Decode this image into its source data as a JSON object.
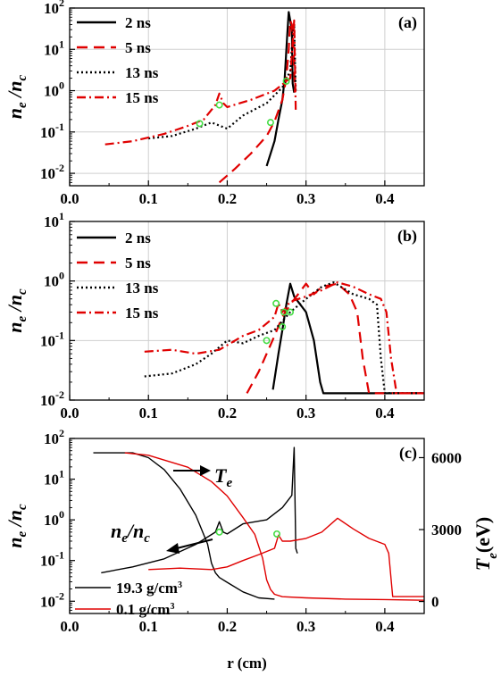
{
  "chart_data": [
    {
      "type": "line",
      "panel_label": "(a)",
      "ylabel": "n_e/n_c",
      "y_scale": "log",
      "xlim": [
        0.0,
        0.45
      ],
      "ylim": [
        0.005,
        100
      ],
      "x_ticks": [
        "0.0",
        "0.1",
        "0.2",
        "0.3",
        "0.4"
      ],
      "y_ticks": [
        0.01,
        0.1,
        1,
        10,
        100
      ],
      "grid": true,
      "legend_position": "top-left",
      "series": [
        {
          "name": "2 ns",
          "color": "#000000",
          "dash": "solid",
          "x": [
            0.25,
            0.26,
            0.265,
            0.27,
            0.273,
            0.276,
            0.278,
            0.28,
            0.282,
            0.283,
            0.285
          ],
          "y": [
            0.015,
            0.06,
            0.2,
            0.6,
            2.0,
            20,
            80,
            50,
            30,
            1.5,
            0.9
          ]
        },
        {
          "name": "5 ns",
          "color": "#e00000",
          "dash": "12,7",
          "x": [
            0.19,
            0.21,
            0.23,
            0.25,
            0.26,
            0.27,
            0.275,
            0.278,
            0.28,
            0.282,
            0.284,
            0.286
          ],
          "y": [
            0.006,
            0.013,
            0.03,
            0.08,
            0.18,
            0.6,
            2.0,
            10,
            50,
            40,
            12,
            0.9
          ]
        },
        {
          "name": "13 ns",
          "color": "#000000",
          "dash": "2,3",
          "x": [
            0.1,
            0.13,
            0.16,
            0.18,
            0.2,
            0.22,
            0.25,
            0.27,
            0.28,
            0.283,
            0.285,
            0.287
          ],
          "y": [
            0.07,
            0.08,
            0.12,
            0.17,
            0.12,
            0.25,
            0.5,
            1.2,
            3,
            20,
            40,
            0.9
          ]
        },
        {
          "name": "15 ns",
          "color": "#e00000",
          "dash": "10,4,2,4",
          "x": [
            0.045,
            0.08,
            0.12,
            0.15,
            0.17,
            0.185,
            0.19,
            0.195,
            0.2,
            0.23,
            0.26,
            0.28,
            0.285,
            0.287
          ],
          "y": [
            0.05,
            0.06,
            0.09,
            0.14,
            0.2,
            0.45,
            0.85,
            0.5,
            0.4,
            0.6,
            1.0,
            2.0,
            50,
            0.3
          ]
        }
      ],
      "markers": {
        "color": "#44dd44",
        "x": [
          0.165,
          0.19,
          0.255,
          0.275
        ],
        "y": [
          0.16,
          0.45,
          0.17,
          1.7
        ]
      }
    },
    {
      "type": "line",
      "panel_label": "(b)",
      "ylabel": "n_e/n_c",
      "y_scale": "log",
      "xlim": [
        0.0,
        0.45
      ],
      "ylim": [
        0.01,
        10
      ],
      "x_ticks": [
        "0.0",
        "0.1",
        "0.2",
        "0.3",
        "0.4"
      ],
      "y_ticks": [
        0.01,
        0.1,
        1,
        10
      ],
      "grid": true,
      "legend_position": "top-left",
      "series": [
        {
          "name": "2 ns",
          "color": "#000000",
          "dash": "solid",
          "x": [
            0.258,
            0.265,
            0.27,
            0.275,
            0.28,
            0.285,
            0.29,
            0.3,
            0.31,
            0.318,
            0.322,
            0.33,
            0.45
          ],
          "y": [
            0.015,
            0.06,
            0.15,
            0.4,
            0.9,
            0.55,
            0.45,
            0.3,
            0.1,
            0.02,
            0.013,
            0.013,
            0.013
          ]
        },
        {
          "name": "5 ns",
          "color": "#e00000",
          "dash": "12,7",
          "x": [
            0.225,
            0.24,
            0.25,
            0.26,
            0.27,
            0.28,
            0.3,
            0.31,
            0.32,
            0.34,
            0.355,
            0.365,
            0.372,
            0.38,
            0.45
          ],
          "y": [
            0.013,
            0.03,
            0.06,
            0.12,
            0.25,
            0.4,
            0.9,
            0.6,
            0.8,
            0.9,
            0.6,
            0.3,
            0.05,
            0.013,
            0.013
          ]
        },
        {
          "name": "13 ns",
          "color": "#000000",
          "dash": "2,3",
          "x": [
            0.095,
            0.13,
            0.16,
            0.18,
            0.2,
            0.22,
            0.24,
            0.26,
            0.28,
            0.3,
            0.32,
            0.335,
            0.36,
            0.38,
            0.39,
            0.395,
            0.4,
            0.45
          ],
          "y": [
            0.025,
            0.028,
            0.04,
            0.06,
            0.1,
            0.09,
            0.12,
            0.15,
            0.3,
            0.5,
            0.8,
            0.95,
            0.6,
            0.5,
            0.4,
            0.05,
            0.013,
            0.013
          ]
        },
        {
          "name": "15 ns",
          "color": "#e00000",
          "dash": "10,4,2,4",
          "x": [
            0.095,
            0.13,
            0.16,
            0.19,
            0.22,
            0.24,
            0.26,
            0.265,
            0.27,
            0.28,
            0.3,
            0.32,
            0.34,
            0.36,
            0.38,
            0.395,
            0.402,
            0.408,
            0.415,
            0.45
          ],
          "y": [
            0.065,
            0.07,
            0.06,
            0.07,
            0.12,
            0.15,
            0.25,
            0.42,
            0.3,
            0.45,
            0.55,
            0.7,
            0.95,
            0.8,
            0.6,
            0.5,
            0.3,
            0.05,
            0.013,
            0.013
          ]
        }
      ],
      "markers": {
        "color": "#44dd44",
        "x": [
          0.25,
          0.262,
          0.27,
          0.272,
          0.28
        ],
        "y": [
          0.1,
          0.42,
          0.17,
          0.3,
          0.3
        ]
      }
    },
    {
      "type": "line",
      "panel_label": "(c)",
      "ylabel": "n_e/n_c",
      "y2label": "T_e(eV)",
      "xlabel": "r (cm)",
      "y_scale": "log",
      "xlim": [
        0.0,
        0.45
      ],
      "ylim": [
        0.005,
        100
      ],
      "y2lim": [
        -500,
        6800
      ],
      "x_ticks": [
        "0.0",
        "0.1",
        "0.2",
        "0.3",
        "0.4"
      ],
      "y_ticks": [
        0.01,
        0.1,
        1,
        10,
        100
      ],
      "y2_ticks": [
        "0",
        "3000",
        "6000"
      ],
      "grid": false,
      "legend_position": "bottom-left",
      "series": [
        {
          "name": "19.3 g/cm3",
          "color": "#000000",
          "quantity": "n_e/n_c",
          "x": [
            0.04,
            0.08,
            0.12,
            0.16,
            0.185,
            0.19,
            0.195,
            0.2,
            0.22,
            0.25,
            0.27,
            0.282,
            0.285,
            0.287,
            0.289
          ],
          "y": [
            0.05,
            0.07,
            0.11,
            0.25,
            0.5,
            0.9,
            0.5,
            0.45,
            0.8,
            1.0,
            2.0,
            4.0,
            60,
            0.2,
            0.15
          ]
        },
        {
          "name": "19.3 g/cm3",
          "color": "#000000",
          "quantity": "T_e",
          "x": [
            0.03,
            0.08,
            0.1,
            0.12,
            0.14,
            0.16,
            0.175,
            0.18,
            0.185,
            0.19,
            0.2,
            0.22,
            0.24,
            0.26
          ],
          "y": [
            6200,
            6200,
            6000,
            5500,
            4700,
            3600,
            2400,
            1600,
            1200,
            1000,
            800,
            400,
            150,
            100
          ]
        },
        {
          "name": "0.1 g/cm3",
          "color": "#e00000",
          "quantity": "n_e/n_c",
          "x": [
            0.1,
            0.14,
            0.18,
            0.2,
            0.22,
            0.24,
            0.26,
            0.265,
            0.27,
            0.28,
            0.3,
            0.32,
            0.34,
            0.36,
            0.38,
            0.4,
            0.405,
            0.41,
            0.45
          ],
          "y": [
            0.06,
            0.065,
            0.06,
            0.07,
            0.1,
            0.14,
            0.2,
            0.42,
            0.3,
            0.3,
            0.35,
            0.5,
            1.1,
            0.6,
            0.35,
            0.25,
            0.15,
            0.013,
            0.013
          ]
        },
        {
          "name": "0.1 g/cm3",
          "color": "#e00000",
          "quantity": "T_e",
          "x": [
            0.07,
            0.1,
            0.12,
            0.15,
            0.18,
            0.2,
            0.22,
            0.235,
            0.245,
            0.25,
            0.255,
            0.26,
            0.27,
            0.3,
            0.35,
            0.4,
            0.45
          ],
          "y": [
            6200,
            6100,
            5900,
            5600,
            5000,
            4400,
            3500,
            2800,
            1800,
            900,
            500,
            300,
            200,
            150,
            100,
            80,
            50
          ]
        }
      ],
      "markers": {
        "color": "#44dd44",
        "x": [
          0.19,
          0.263
        ],
        "y": [
          0.5,
          0.45
        ]
      },
      "annotations": [
        {
          "text": "T",
          "sub": "e",
          "points_to": "T_e curves"
        },
        {
          "text": "n",
          "sub": "e",
          "slash": "/n",
          "sub2": "c",
          "points_to": "n_e/n_c curves"
        }
      ]
    }
  ]
}
